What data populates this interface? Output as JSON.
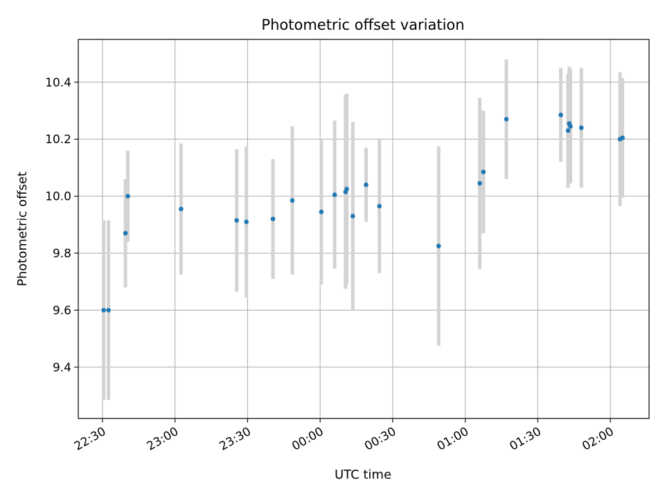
{
  "chart_data": {
    "type": "scatter",
    "title": "Photometric offset variation",
    "xlabel": "UTC time",
    "ylabel": "Photometric offset",
    "grid": true,
    "x_unit": "UTC clock time (HH:MM), crossing midnight",
    "xlim": [
      "22:20",
      "02:16"
    ],
    "ylim": [
      9.22,
      10.55
    ],
    "x_ticks": [
      "22:30",
      "23:00",
      "23:30",
      "00:00",
      "00:30",
      "01:00",
      "01:30",
      "02:00"
    ],
    "y_ticks": [
      "9.4",
      "9.6",
      "9.8",
      "10.0",
      "10.2",
      "10.4"
    ],
    "marker_color": "#1f77b4",
    "errorbar_color": "#d3d3d3",
    "points": [
      {
        "x": "22:30:30",
        "y": 9.6,
        "yerr": 0.315
      },
      {
        "x": "22:32:30",
        "y": 9.6,
        "yerr": 0.315
      },
      {
        "x": "22:39:30",
        "y": 9.87,
        "yerr": 0.19
      },
      {
        "x": "22:40:30",
        "y": 10.0,
        "yerr": 0.16
      },
      {
        "x": "23:02:30",
        "y": 9.955,
        "yerr": 0.23
      },
      {
        "x": "23:25:30",
        "y": 9.915,
        "yerr": 0.25
      },
      {
        "x": "23:29:30",
        "y": 9.91,
        "yerr": 0.265
      },
      {
        "x": "23:40:30",
        "y": 9.92,
        "yerr": 0.21
      },
      {
        "x": "23:48:30",
        "y": 9.985,
        "yerr": 0.26
      },
      {
        "x": "00:00:30",
        "y": 9.945,
        "yerr": 0.255
      },
      {
        "x": "00:06:00",
        "y": 10.005,
        "yerr": 0.26
      },
      {
        "x": "00:10:30",
        "y": 10.015,
        "yerr": 0.34
      },
      {
        "x": "00:11:00",
        "y": 10.025,
        "yerr": 0.335
      },
      {
        "x": "00:13:30",
        "y": 9.93,
        "yerr": 0.33
      },
      {
        "x": "00:19:00",
        "y": 10.04,
        "yerr": 0.13
      },
      {
        "x": "00:24:30",
        "y": 9.965,
        "yerr": 0.235
      },
      {
        "x": "00:49:00",
        "y": 9.825,
        "yerr": 0.35
      },
      {
        "x": "01:06:00",
        "y": 10.045,
        "yerr": 0.3
      },
      {
        "x": "01:07:30",
        "y": 10.085,
        "yerr": 0.215
      },
      {
        "x": "01:17:00",
        "y": 10.27,
        "yerr": 0.21
      },
      {
        "x": "01:39:30",
        "y": 10.285,
        "yerr": 0.165
      },
      {
        "x": "01:42:30",
        "y": 10.23,
        "yerr": 0.2
      },
      {
        "x": "01:43:00",
        "y": 10.255,
        "yerr": 0.2
      },
      {
        "x": "01:43:30",
        "y": 10.245,
        "yerr": 0.2
      },
      {
        "x": "01:48:00",
        "y": 10.24,
        "yerr": 0.21
      },
      {
        "x": "02:04:00",
        "y": 10.2,
        "yerr": 0.235
      },
      {
        "x": "02:05:00",
        "y": 10.205,
        "yerr": 0.21
      }
    ]
  }
}
